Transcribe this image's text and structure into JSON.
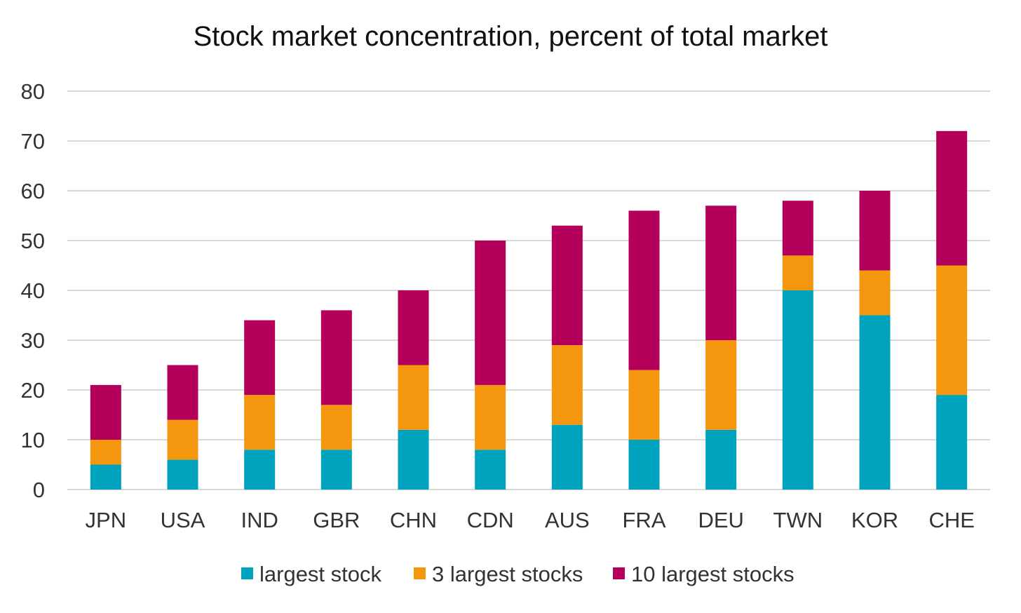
{
  "chart_data": {
    "type": "bar",
    "stacked": true,
    "title": "Stock market concentration, percent of total market",
    "xlabel": "",
    "ylabel": "",
    "ylim": [
      0,
      80
    ],
    "yticks": [
      0,
      10,
      20,
      30,
      40,
      50,
      60,
      70,
      80
    ],
    "grid": true,
    "legend_position": "bottom",
    "categories": [
      "JPN",
      "USA",
      "IND",
      "GBR",
      "CHN",
      "CDN",
      "AUS",
      "FRA",
      "DEU",
      "TWN",
      "KOR",
      "CHE"
    ],
    "series": [
      {
        "name": "largest stock",
        "color": "#00A3BE",
        "values": [
          5,
          6,
          8,
          8,
          12,
          8,
          13,
          10,
          12,
          40,
          35,
          19
        ]
      },
      {
        "name": "3 largest stocks",
        "color": "#F5960F",
        "values": [
          5,
          8,
          11,
          9,
          13,
          13,
          16,
          14,
          18,
          7,
          9,
          26
        ]
      },
      {
        "name": "10 largest stocks",
        "color": "#B4005A",
        "values": [
          11,
          11,
          15,
          19,
          15,
          29,
          24,
          32,
          27,
          11,
          16,
          27
        ]
      }
    ]
  }
}
